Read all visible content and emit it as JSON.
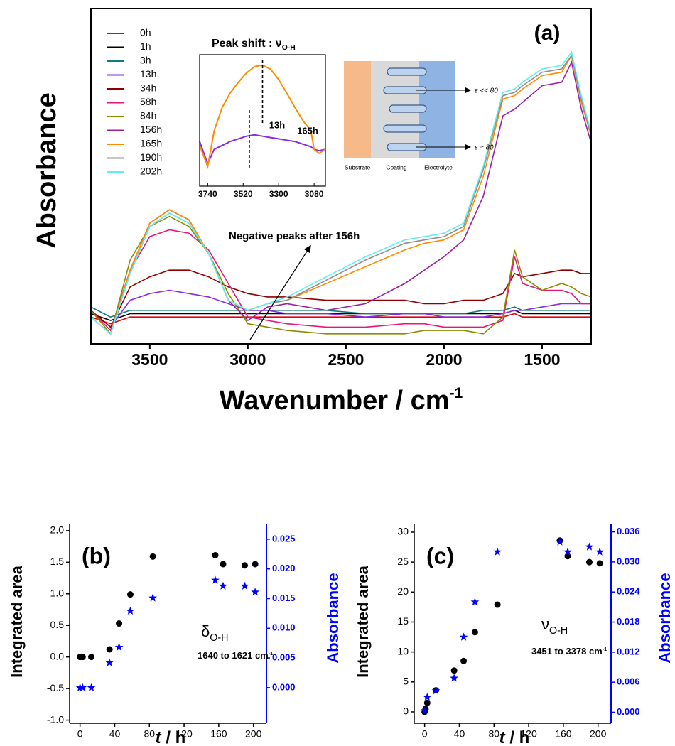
{
  "chart_data": [
    {
      "type": "line",
      "title": "(a)",
      "xlabel": {
        "text": "Wavenumber / cm",
        "sup": "-1"
      },
      "ylabel": "Absorbance",
      "xlim": [
        3800,
        1250
      ],
      "ylim": [
        0,
        1
      ],
      "xticks": [
        3500,
        3000,
        2500,
        2000,
        1500
      ],
      "legend": "upper left",
      "annotation": "Negative peaks after 156h",
      "x": [
        3800,
        3700,
        3600,
        3500,
        3400,
        3300,
        3200,
        3100,
        3000,
        2900,
        2800,
        2600,
        2400,
        2200,
        2100,
        2000,
        1900,
        1800,
        1700,
        1640,
        1600,
        1500,
        1400,
        1350,
        1300,
        1250
      ],
      "series": [
        {
          "name": "0h",
          "color": "#e8000b",
          "values": [
            0.08,
            0.06,
            0.08,
            0.08,
            0.08,
            0.08,
            0.08,
            0.08,
            0.08,
            0.08,
            0.08,
            0.08,
            0.08,
            0.08,
            0.08,
            0.08,
            0.08,
            0.08,
            0.08,
            0.09,
            0.08,
            0.08,
            0.08,
            0.08,
            0.08,
            0.08
          ]
        },
        {
          "name": "1h",
          "color": "#000000",
          "values": [
            0.09,
            0.07,
            0.09,
            0.09,
            0.09,
            0.09,
            0.09,
            0.09,
            0.09,
            0.09,
            0.09,
            0.09,
            0.09,
            0.09,
            0.09,
            0.09,
            0.09,
            0.09,
            0.09,
            0.1,
            0.09,
            0.09,
            0.09,
            0.09,
            0.09,
            0.09
          ]
        },
        {
          "name": "3h",
          "color": "#0e7c7b",
          "values": [
            0.11,
            0.08,
            0.1,
            0.1,
            0.1,
            0.1,
            0.1,
            0.1,
            0.1,
            0.1,
            0.1,
            0.1,
            0.09,
            0.09,
            0.09,
            0.09,
            0.09,
            0.1,
            0.1,
            0.11,
            0.1,
            0.1,
            0.1,
            0.1,
            0.1,
            0.1
          ]
        },
        {
          "name": "13h",
          "color": "#8a2be2",
          "values": [
            0.1,
            0.05,
            0.13,
            0.15,
            0.16,
            0.15,
            0.14,
            0.12,
            0.1,
            0.1,
            0.09,
            0.09,
            0.08,
            0.09,
            0.09,
            0.08,
            0.08,
            0.08,
            0.09,
            0.1,
            0.1,
            0.11,
            0.12,
            0.12,
            0.12,
            0.12
          ]
        },
        {
          "name": "34h",
          "color": "#8b0000",
          "values": [
            0.1,
            0.05,
            0.17,
            0.2,
            0.22,
            0.22,
            0.2,
            0.17,
            0.15,
            0.14,
            0.14,
            0.13,
            0.13,
            0.13,
            0.12,
            0.12,
            0.13,
            0.13,
            0.15,
            0.21,
            0.2,
            0.21,
            0.22,
            0.22,
            0.21,
            0.21
          ]
        },
        {
          "name": "58h",
          "color": "#e6177a",
          "values": [
            0.1,
            0.04,
            0.22,
            0.32,
            0.34,
            0.33,
            0.28,
            0.18,
            0.08,
            0.07,
            0.06,
            0.05,
            0.05,
            0.06,
            0.06,
            0.05,
            0.05,
            0.05,
            0.07,
            0.26,
            0.18,
            0.16,
            0.16,
            0.15,
            0.12,
            0.12
          ]
        },
        {
          "name": "84h",
          "color": "#8b8b00",
          "values": [
            0.1,
            0.03,
            0.25,
            0.35,
            0.38,
            0.35,
            0.27,
            0.15,
            0.06,
            0.05,
            0.04,
            0.03,
            0.03,
            0.03,
            0.04,
            0.04,
            0.04,
            0.03,
            0.08,
            0.28,
            0.2,
            0.16,
            0.18,
            0.17,
            0.15,
            0.14
          ]
        },
        {
          "name": "156h",
          "color": "#9b1fa0",
          "values": [
            0.08,
            0.03,
            0.22,
            0.36,
            0.4,
            0.37,
            0.27,
            0.13,
            0.07,
            0.11,
            0.12,
            0.1,
            0.12,
            0.18,
            0.22,
            0.26,
            0.31,
            0.44,
            0.68,
            0.7,
            0.72,
            0.77,
            0.78,
            0.84,
            0.7,
            0.6
          ]
        },
        {
          "name": "165h",
          "color": "#ff8c00",
          "values": [
            0.08,
            0.03,
            0.22,
            0.36,
            0.4,
            0.37,
            0.27,
            0.13,
            0.1,
            0.12,
            0.13,
            0.18,
            0.23,
            0.28,
            0.3,
            0.31,
            0.34,
            0.5,
            0.73,
            0.74,
            0.76,
            0.8,
            0.81,
            0.86,
            0.72,
            0.62
          ]
        },
        {
          "name": "190h",
          "color": "#8c8c8c",
          "values": [
            0.08,
            0.03,
            0.21,
            0.35,
            0.39,
            0.36,
            0.27,
            0.13,
            0.1,
            0.12,
            0.13,
            0.19,
            0.25,
            0.3,
            0.31,
            0.32,
            0.35,
            0.52,
            0.74,
            0.75,
            0.77,
            0.81,
            0.82,
            0.86,
            0.73,
            0.62
          ]
        },
        {
          "name": "202h",
          "color": "#5ef0f0",
          "values": [
            0.08,
            0.03,
            0.21,
            0.35,
            0.39,
            0.36,
            0.27,
            0.13,
            0.1,
            0.12,
            0.14,
            0.2,
            0.26,
            0.31,
            0.32,
            0.33,
            0.36,
            0.53,
            0.75,
            0.76,
            0.78,
            0.82,
            0.83,
            0.87,
            0.74,
            0.63
          ]
        }
      ],
      "inset": {
        "type": "line",
        "title": {
          "text": "Peak shift : ν",
          "sub": "O-H"
        },
        "xlim": [
          3790,
          3010
        ],
        "ylim": [
          0,
          1
        ],
        "xticks": [
          3740,
          3520,
          3300,
          3080
        ],
        "x": [
          3790,
          3740,
          3700,
          3650,
          3600,
          3550,
          3500,
          3450,
          3400,
          3350,
          3300,
          3250,
          3200,
          3150,
          3100,
          3080,
          3050,
          3010
        ],
        "peak_lines": [
          3482,
          3400
        ],
        "series": [
          {
            "name": "13h",
            "color": "#8a2be2",
            "values": [
              0.34,
              0.17,
              0.28,
              0.31,
              0.34,
              0.36,
              0.38,
              0.39,
              0.38,
              0.37,
              0.36,
              0.35,
              0.34,
              0.32,
              0.3,
              0.28,
              0.27,
              0.28
            ]
          },
          {
            "name": "165h",
            "color": "#ff8c00",
            "values": [
              0.31,
              0.15,
              0.42,
              0.6,
              0.71,
              0.79,
              0.86,
              0.91,
              0.92,
              0.89,
              0.81,
              0.71,
              0.6,
              0.5,
              0.42,
              0.28,
              0.25,
              0.28
            ]
          }
        ]
      }
    },
    {
      "type": "scatter",
      "title": "(b)",
      "xlabel": {
        "var": "t",
        "text": " / h"
      },
      "ylabel": "Integrated area",
      "y2label": "Absorbance",
      "symbol": {
        "text": "δ",
        "sub": "O-H"
      },
      "note": {
        "text": "1640 to 1621 cm",
        "sup": "-1"
      },
      "xlim": [
        -12,
        215
      ],
      "xticks": [
        0,
        40,
        80,
        120,
        160,
        200
      ],
      "ylim": [
        -1.05,
        2.1
      ],
      "yticks": [
        {
          "value": -1,
          "label": "-1.0"
        },
        -0.5,
        {
          "value": 0,
          "label": "0.0"
        },
        0.5,
        {
          "value": 1,
          "label": "1.0"
        },
        1.5,
        {
          "value": 2,
          "label": "2.0"
        }
      ],
      "y2lim": [
        -0.006,
        0.0275
      ],
      "y2ticks": [
        {
          "value": 0,
          "label": "0.000"
        },
        {
          "value": 0.005,
          "label": "0.005"
        },
        {
          "value": 0.01,
          "label": "0.010"
        },
        {
          "value": 0.015,
          "label": "0.015"
        },
        {
          "value": 0.02,
          "label": "0.020"
        },
        {
          "value": 0.025,
          "label": "0.025"
        }
      ],
      "y2color": "#0000ff",
      "series": [
        {
          "color": "#000000",
          "marker": "circle",
          "x": [
            0,
            3,
            13,
            34,
            45,
            58,
            84,
            156,
            165,
            190,
            202
          ],
          "values": [
            0,
            0,
            0,
            0.12,
            0.53,
            0.99,
            1.59,
            1.61,
            1.47,
            1.45,
            1.47
          ]
        },
        {
          "color": "#0000ff",
          "marker": "star",
          "axis": "y2",
          "x": [
            0,
            3,
            13,
            34,
            45,
            58,
            84,
            156,
            165,
            190,
            202
          ],
          "values": [
            0,
            0,
            0,
            0.0042,
            0.0068,
            0.0129,
            0.0151,
            0.0181,
            0.0171,
            0.0171,
            0.0161
          ]
        }
      ]
    },
    {
      "type": "scatter",
      "title": "(c)",
      "xlabel": {
        "var": "t",
        "text": " / h"
      },
      "ylabel": "Integrated area",
      "y2label": "Absorbance",
      "symbol": {
        "text": "ν",
        "sub": "O-H"
      },
      "note": {
        "text": "3451 to 3378 cm",
        "sup": "-1"
      },
      "xlim": [
        -12,
        215
      ],
      "xticks": [
        0,
        40,
        80,
        120,
        160,
        200
      ],
      "ylim": [
        -1.9,
        31.3
      ],
      "yticks": [
        0,
        5,
        10,
        15,
        20,
        25,
        30
      ],
      "y2lim": [
        -0.0022,
        0.0375
      ],
      "y2ticks": [
        {
          "value": 0,
          "label": "0.000"
        },
        {
          "value": 0.006,
          "label": "0.006"
        },
        {
          "value": 0.012,
          "label": "0.012"
        },
        {
          "value": 0.018,
          "label": "0.018"
        },
        {
          "value": 0.024,
          "label": "0.024"
        },
        {
          "value": 0.03,
          "label": "0.030"
        },
        {
          "value": 0.036,
          "label": "0.036"
        }
      ],
      "y2color": "#0000ff",
      "series": [
        {
          "color": "#000000",
          "marker": "circle",
          "x": [
            0,
            1,
            3,
            13,
            34,
            45,
            58,
            84,
            156,
            165,
            190,
            202
          ],
          "values": [
            0,
            0.5,
            1.5,
            3.6,
            6.9,
            8.5,
            13.3,
            17.9,
            28.6,
            26,
            25,
            24.8
          ]
        },
        {
          "color": "#0000ff",
          "marker": "star",
          "axis": "y2",
          "x": [
            0,
            3,
            13,
            34,
            45,
            58,
            84,
            156,
            165,
            190,
            202
          ],
          "values": [
            0.0003,
            0.003,
            0.0043,
            0.0068,
            0.015,
            0.022,
            0.032,
            0.034,
            0.032,
            0.033,
            0.032
          ]
        }
      ]
    }
  ],
  "diagram": {
    "substrate": "Substrate",
    "coating": "Coating",
    "electrolyte": "Electrolyte",
    "arrow_top": "ε << 80",
    "arrow_bottom": "ε ≈ 80"
  }
}
